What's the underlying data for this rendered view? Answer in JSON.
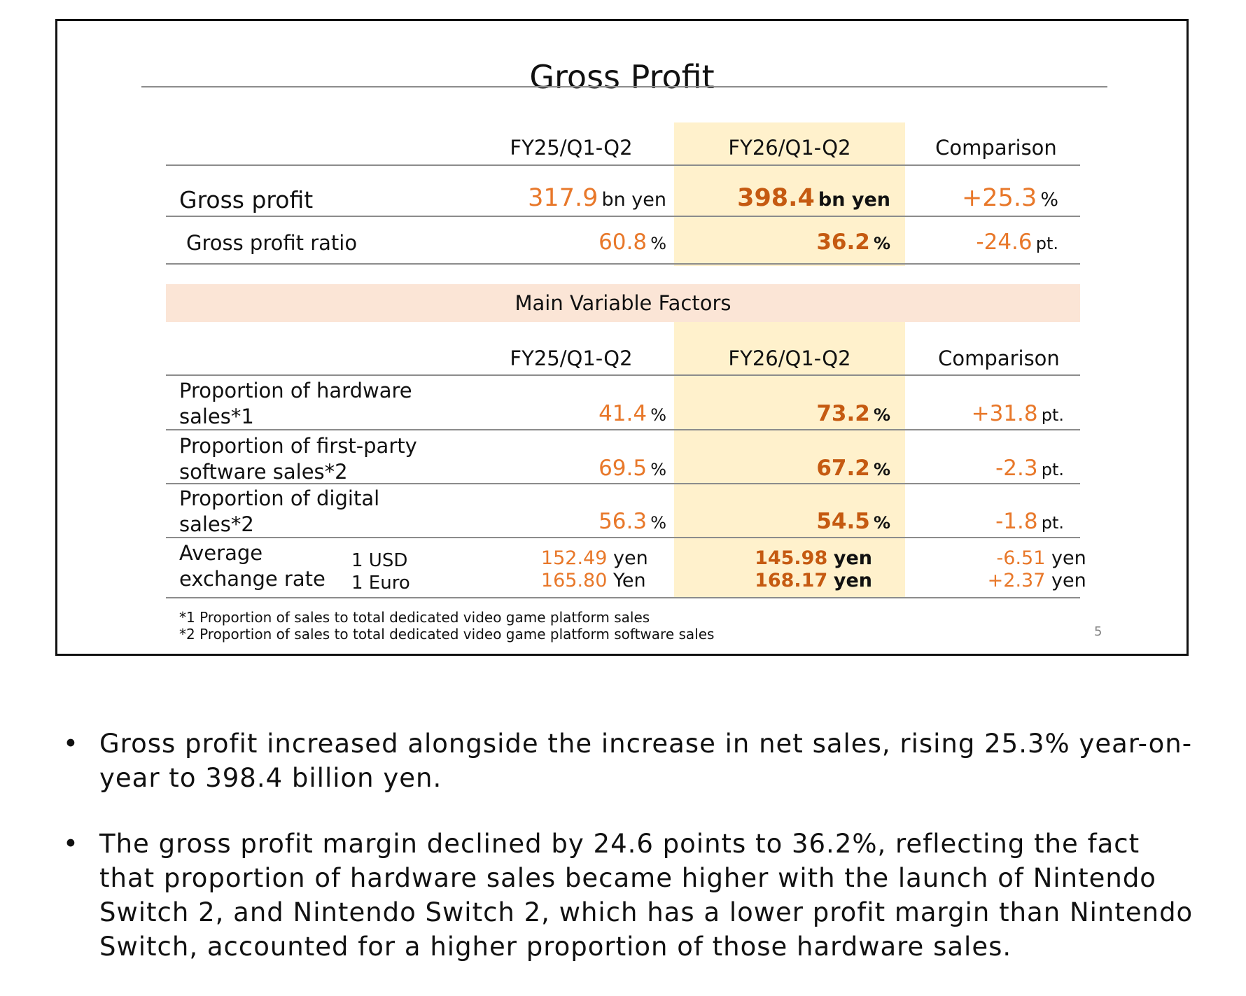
{
  "slide": {
    "title": "Gross Profit",
    "header": {
      "col1": "FY25/Q1-Q2",
      "col2": "FY26/Q1-Q2",
      "col3": "Comparison"
    },
    "gross_profit": {
      "label": "Gross profit",
      "fy25": "317.9",
      "fy25_unit": "bn yen",
      "fy26": "398.4",
      "fy26_unit": "bn yen",
      "cmp": "+25.3",
      "cmp_unit": "%"
    },
    "gross_profit_ratio": {
      "label": "Gross profit ratio",
      "fy25": "60.8",
      "fy25_unit": "%",
      "fy26": "36.2",
      "fy26_unit": "%",
      "cmp": "-24.6",
      "cmp_unit": "pt."
    },
    "factors_title": "Main Variable Factors",
    "factors_header": {
      "col1": "FY25/Q1-Q2",
      "col2": "FY26/Q1-Q2",
      "col3": "Comparison"
    },
    "hardware": {
      "label_line1": "Proportion of hardware",
      "label_line2": "sales*1",
      "fy25": "41.4",
      "fy25_unit": "%",
      "fy26": "73.2",
      "fy26_unit": "%",
      "cmp": "+31.8",
      "cmp_unit": "pt."
    },
    "first_party": {
      "label_line1": "Proportion of first-party",
      "label_line2": "software sales*2",
      "fy25": "69.5",
      "fy25_unit": "%",
      "fy26": "67.2",
      "fy26_unit": "%",
      "cmp": "-2.3",
      "cmp_unit": "pt."
    },
    "digital": {
      "label_line1": "Proportion of digital",
      "label_line2": "sales*2",
      "fy25": "56.3",
      "fy25_unit": "%",
      "fy26": "54.5",
      "fy26_unit": "%",
      "cmp": "-1.8",
      "cmp_unit": "pt."
    },
    "exchange": {
      "label_line1": "Average",
      "label_line2": "exchange rate",
      "usd_label": "1 USD",
      "euro_label": "1 Euro",
      "usd_fy25": "152.49",
      "usd_fy25_unit": "yen",
      "euro_fy25": "165.80",
      "euro_fy25_unit": "Yen",
      "usd_fy26": "145.98",
      "usd_fy26_unit": "yen",
      "euro_fy26": "168.17",
      "euro_fy26_unit": "yen",
      "usd_cmp": "-6.51",
      "usd_cmp_unit": "yen",
      "euro_cmp": "+2.37",
      "euro_cmp_unit": "yen"
    },
    "footnote1": "*1 Proportion of sales to total dedicated video game platform sales",
    "footnote2": "*2 Proportion of sales to total dedicated video game platform software sales",
    "page_number": "5"
  },
  "bullets": [
    "Gross profit increased alongside the increase in net sales, rising 25.3% year-on-year to 398.4 billion yen.",
    "The gross profit margin declined by 24.6 points to 36.2%, reflecting the fact that proportion of hardware sales became higher with the launch of Nintendo Switch 2, and Nintendo Switch 2, which has a lower profit margin than Nintendo Switch, accounted for a higher proportion of those hardware sales."
  ],
  "bullet_glyph": "•",
  "colors": {
    "value": "#e8782a",
    "value_bold": "#c55a11",
    "highlight_column": "#fff1cc",
    "factor_band": "#fbe5d6"
  }
}
